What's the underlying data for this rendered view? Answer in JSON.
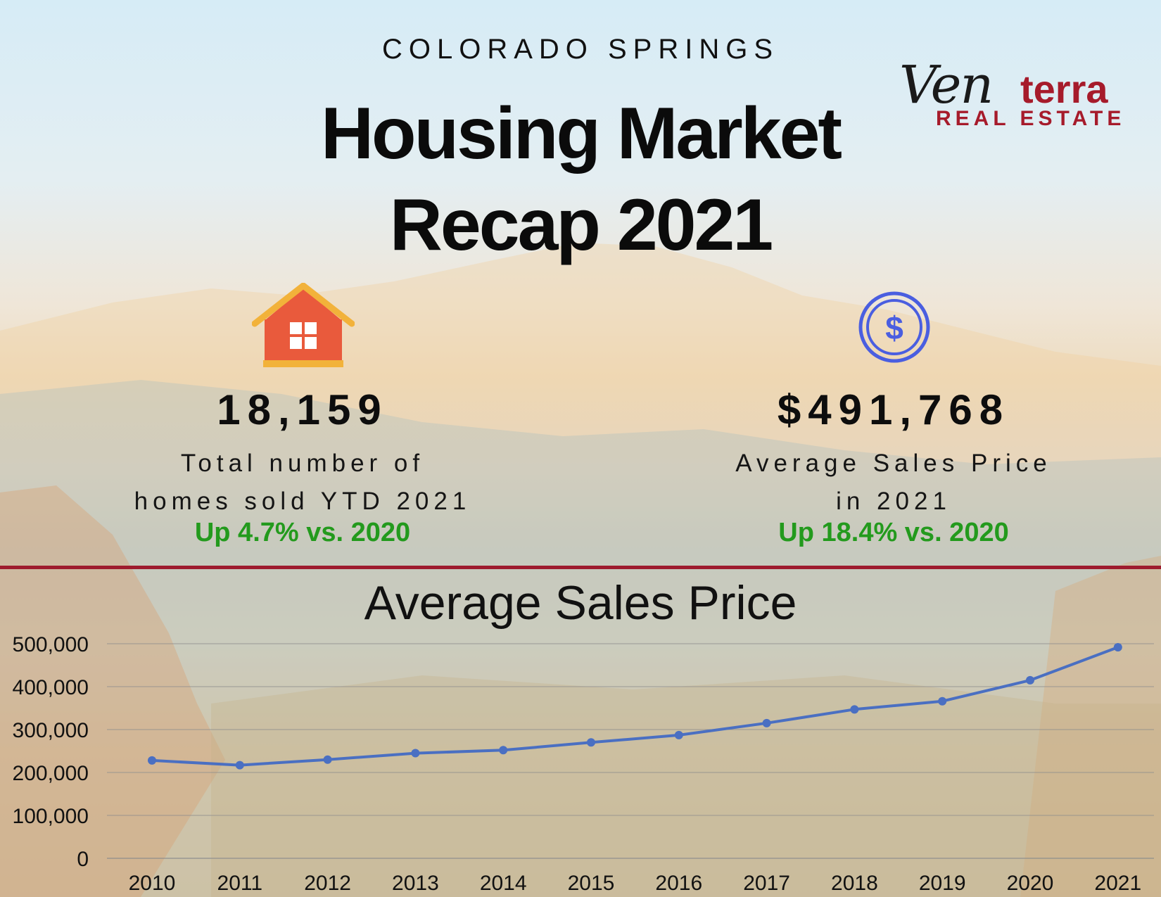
{
  "header": {
    "kicker": "COLORADO SPRINGS",
    "title_line1": "Housing Market",
    "title_line2": "Recap 2021"
  },
  "logo": {
    "script_text": "Ven",
    "bold_text": "terra",
    "subtitle": "REAL ESTATE"
  },
  "stats": [
    {
      "icon": "house-icon",
      "value": "18,159",
      "desc_line1": "Total number of",
      "desc_line2": "homes sold YTD 2021",
      "change": "Up 4.7% vs. 2020"
    },
    {
      "icon": "dollar-icon",
      "value": "$491,768",
      "desc_line1": "Average Sales Price",
      "desc_line2": "in 2021",
      "change": "Up 18.4% vs. 2020"
    }
  ],
  "colors": {
    "accent_red": "#9e1b2e",
    "up_green": "#239a1d",
    "line_blue": "#4a6fc2",
    "house_orange": "#e95a3c",
    "house_roof": "#f2b23a",
    "dollar_blue": "#4a5ee0"
  },
  "chart_data": {
    "type": "line",
    "title": "Average Sales Price",
    "xlabel": "",
    "ylabel": "",
    "categories": [
      "2010",
      "2011",
      "2012",
      "2013",
      "2014",
      "2015",
      "2016",
      "2017",
      "2018",
      "2019",
      "2020",
      "2021"
    ],
    "series": [
      {
        "values": [
          228000,
          217000,
          230000,
          245000,
          252000,
          270000,
          287000,
          315000,
          347000,
          366000,
          415000,
          491768
        ]
      }
    ],
    "ylim": [
      0,
      500000
    ],
    "yticks": [
      "0",
      "100,000",
      "200,000",
      "300,000",
      "400,000",
      "500,000"
    ],
    "grid": true,
    "legend": "none"
  }
}
